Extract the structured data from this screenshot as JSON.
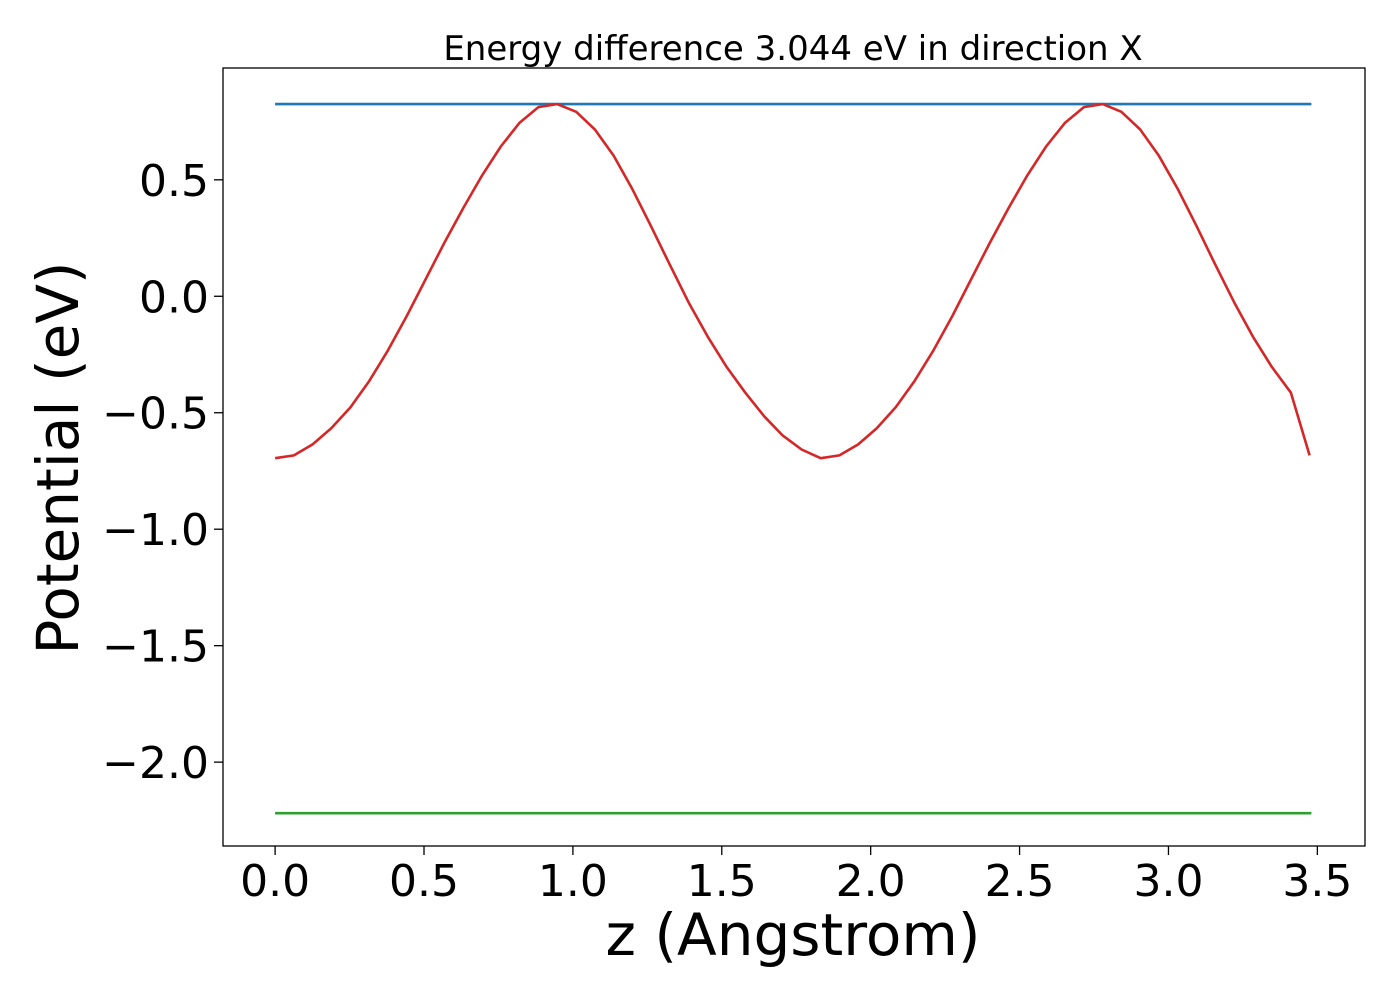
{
  "chart_data": {
    "type": "line",
    "title": "Energy difference 3.044 eV in direction X",
    "xlabel": "z (Angstrom)",
    "ylabel": "Potential (eV)",
    "xlim": [
      -0.175,
      3.66
    ],
    "ylim": [
      -2.36,
      0.98
    ],
    "x_ticks": [
      0.0,
      0.5,
      1.0,
      1.5,
      2.0,
      2.5,
      3.0,
      3.5
    ],
    "x_tick_labels": [
      "0.0",
      "0.5",
      "1.0",
      "1.5",
      "2.0",
      "2.5",
      "3.0",
      "3.5"
    ],
    "y_ticks": [
      0.5,
      0.0,
      -0.5,
      -1.0,
      -1.5,
      -2.0
    ],
    "y_tick_labels": [
      "0.5",
      "0.0",
      "−0.5",
      "−1.0",
      "−1.5",
      "−2.0"
    ],
    "grid": false,
    "series": [
      {
        "color": "#1f77b4",
        "x": [
          0.0,
          3.48
        ],
        "y": [
          0.825,
          0.825
        ]
      },
      {
        "color": "#2ca02c",
        "x": [
          0.0,
          3.48
        ],
        "y": [
          -2.219,
          -2.219
        ]
      },
      {
        "color": "#d62728",
        "x": [
          0.0,
          0.063,
          0.126,
          0.189,
          0.253,
          0.316,
          0.379,
          0.442,
          0.505,
          0.568,
          0.632,
          0.695,
          0.758,
          0.821,
          0.884,
          0.947,
          1.011,
          1.074,
          1.137,
          1.2,
          1.263,
          1.326,
          1.389,
          1.453,
          1.516,
          1.579,
          1.642,
          1.705,
          1.768,
          1.832,
          1.895,
          1.958,
          2.021,
          2.084,
          2.147,
          2.211,
          2.274,
          2.337,
          2.4,
          2.463,
          2.526,
          2.589,
          2.653,
          2.716,
          2.779,
          2.842,
          2.905,
          2.968,
          3.032,
          3.095,
          3.158,
          3.221,
          3.284,
          3.347,
          3.411,
          3.474
        ],
        "y": [
          -0.695,
          -0.683,
          -0.636,
          -0.566,
          -0.476,
          -0.364,
          -0.232,
          -0.085,
          0.072,
          0.229,
          0.379,
          0.519,
          0.643,
          0.745,
          0.812,
          0.825,
          0.792,
          0.716,
          0.603,
          0.459,
          0.299,
          0.134,
          -0.027,
          -0.174,
          -0.303,
          -0.414,
          -0.515,
          -0.598,
          -0.658,
          -0.695,
          -0.683,
          -0.636,
          -0.566,
          -0.476,
          -0.364,
          -0.232,
          -0.085,
          0.072,
          0.229,
          0.379,
          0.519,
          0.643,
          0.745,
          0.812,
          0.825,
          0.792,
          0.716,
          0.603,
          0.459,
          0.299,
          0.134,
          -0.027,
          -0.174,
          -0.303,
          -0.414,
          -0.683
        ]
      }
    ]
  }
}
